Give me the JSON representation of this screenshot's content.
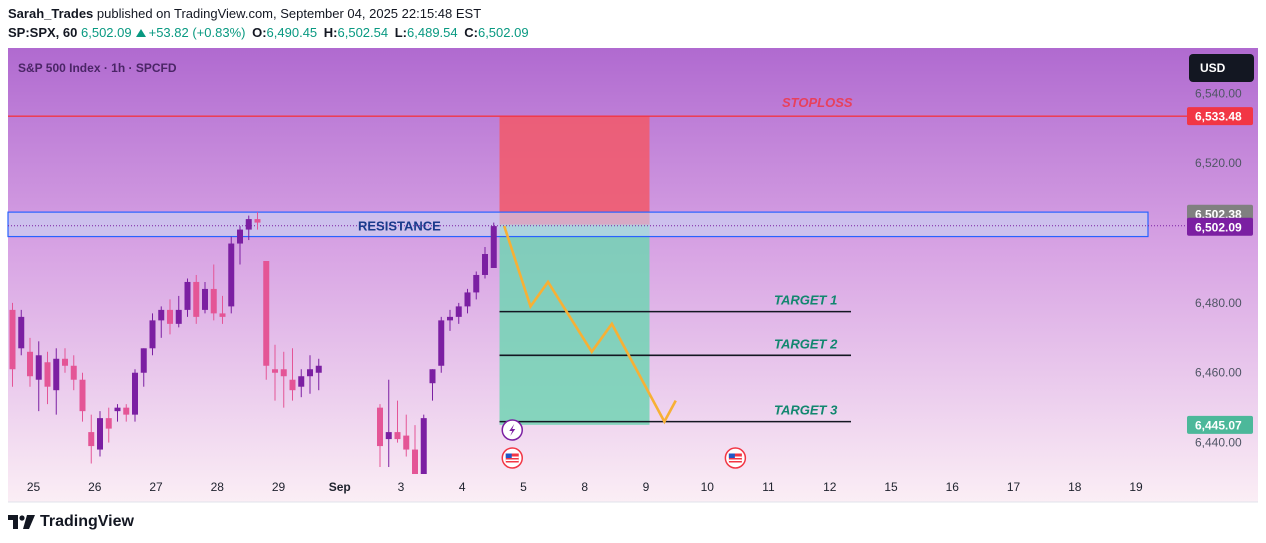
{
  "header": {
    "author": "Sarah_Trades",
    "published_text": "published on TradingView.com, September 04, 2025 22:15:48 EST",
    "symbol_interval": "SP:SPX, 60",
    "last": "6,502.09",
    "change": "+53.82 (+0.83%)",
    "o_label": "O:",
    "o": "6,490.45",
    "h_label": "H:",
    "h": "6,502.54",
    "l_label": "L:",
    "l": "6,489.54",
    "c_label": "C:",
    "c": "6,502.09"
  },
  "currency_button": "USD",
  "footer": {
    "brand": "TradingView"
  },
  "colors": {
    "up": "#7b1fa2",
    "down": "#e45596",
    "stop_fill": "#ef5b6f",
    "target_fill": "#72d4b4",
    "stoploss_line": "#f23645",
    "resistance_fill": "#c9d8f5",
    "resistance_border": "#2962ff",
    "arrow": "#f7b035"
  },
  "chart_data": {
    "type": "candlestick",
    "title": "S&P 500 Index · 1h · SPCFD",
    "y_range": [
      6431,
      6553
    ],
    "y_ticks": [
      6440,
      6460,
      6480,
      6520,
      6540
    ],
    "y_tick_labels": [
      "6,440.00",
      "6,460.00",
      "6,480.00",
      "6,520.00",
      "6,540.00"
    ],
    "x_ticks": [
      {
        "i": 2,
        "label": "25"
      },
      {
        "i": 9,
        "label": "26"
      },
      {
        "i": 16,
        "label": "27"
      },
      {
        "i": 23,
        "label": "28"
      },
      {
        "i": 30,
        "label": "29"
      },
      {
        "i": 37,
        "label": "Sep"
      },
      {
        "i": 44,
        "label": "3"
      },
      {
        "i": 51,
        "label": "4"
      },
      {
        "i": 58,
        "label": "5"
      },
      {
        "i": 65,
        "label": "8"
      },
      {
        "i": 72,
        "label": "9"
      },
      {
        "i": 79,
        "label": "10"
      },
      {
        "i": 86,
        "label": "11"
      },
      {
        "i": 93,
        "label": "12"
      },
      {
        "i": 100,
        "label": "15"
      },
      {
        "i": 107,
        "label": "16"
      },
      {
        "i": 114,
        "label": "17"
      },
      {
        "i": 121,
        "label": "18"
      },
      {
        "i": 128,
        "label": "19"
      }
    ],
    "candles": [
      {
        "i": 0,
        "o": 6478,
        "h": 6480,
        "l": 6456,
        "c": 6461
      },
      {
        "i": 1,
        "o": 6467,
        "h": 6478,
        "l": 6465,
        "c": 6476
      },
      {
        "i": 2,
        "o": 6466,
        "h": 6470,
        "l": 6456,
        "c": 6459
      },
      {
        "i": 3,
        "o": 6458,
        "h": 6469,
        "l": 6449,
        "c": 6465
      },
      {
        "i": 4,
        "o": 6463,
        "h": 6466,
        "l": 6451,
        "c": 6456
      },
      {
        "i": 5,
        "o": 6455,
        "h": 6467,
        "l": 6448,
        "c": 6464
      },
      {
        "i": 6,
        "o": 6464,
        "h": 6467,
        "l": 6460,
        "c": 6462
      },
      {
        "i": 7,
        "o": 6462,
        "h": 6465,
        "l": 6455,
        "c": 6458
      },
      {
        "i": 8,
        "o": 6458,
        "h": 6460,
        "l": 6446,
        "c": 6449
      },
      {
        "i": 9,
        "o": 6443,
        "h": 6448,
        "l": 6434,
        "c": 6439
      },
      {
        "i": 10,
        "o": 6438,
        "h": 6449,
        "l": 6436,
        "c": 6447
      },
      {
        "i": 11,
        "o": 6447,
        "h": 6450,
        "l": 6440,
        "c": 6444
      },
      {
        "i": 12,
        "o": 6449,
        "h": 6451,
        "l": 6446,
        "c": 6450
      },
      {
        "i": 13,
        "o": 6450,
        "h": 6451,
        "l": 6446,
        "c": 6448
      },
      {
        "i": 14,
        "o": 6448,
        "h": 6461,
        "l": 6446,
        "c": 6460
      },
      {
        "i": 15,
        "o": 6460,
        "h": 6467,
        "l": 6456,
        "c": 6467
      },
      {
        "i": 16,
        "o": 6467,
        "h": 6477,
        "l": 6465,
        "c": 6475
      },
      {
        "i": 17,
        "o": 6475,
        "h": 6479,
        "l": 6470,
        "c": 6478
      },
      {
        "i": 18,
        "o": 6478,
        "h": 6481,
        "l": 6471,
        "c": 6474
      },
      {
        "i": 19,
        "o": 6474,
        "h": 6482,
        "l": 6473,
        "c": 6478
      },
      {
        "i": 20,
        "o": 6478,
        "h": 6487,
        "l": 6476,
        "c": 6486
      },
      {
        "i": 21,
        "o": 6486,
        "h": 6488,
        "l": 6474,
        "c": 6476
      },
      {
        "i": 22,
        "o": 6478,
        "h": 6486,
        "l": 6477,
        "c": 6484
      },
      {
        "i": 23,
        "o": 6484,
        "h": 6491,
        "l": 6475,
        "c": 6477
      },
      {
        "i": 24,
        "o": 6477,
        "h": 6482,
        "l": 6474,
        "c": 6476
      },
      {
        "i": 25,
        "o": 6479,
        "h": 6499,
        "l": 6477,
        "c": 6497
      },
      {
        "i": 26,
        "o": 6497,
        "h": 6502,
        "l": 6491,
        "c": 6501
      },
      {
        "i": 27,
        "o": 6501,
        "h": 6505,
        "l": 6498,
        "c": 6504
      },
      {
        "i": 28,
        "o": 6504,
        "h": 6506,
        "l": 6501,
        "c": 6503
      },
      {
        "i": 29,
        "o": 6492,
        "h": 6492,
        "l": 6458,
        "c": 6462
      },
      {
        "i": 30,
        "o": 6461,
        "h": 6468,
        "l": 6452,
        "c": 6460
      },
      {
        "i": 31,
        "o": 6461,
        "h": 6466,
        "l": 6450,
        "c": 6459
      },
      {
        "i": 32,
        "o": 6458,
        "h": 6467,
        "l": 6452,
        "c": 6455
      },
      {
        "i": 33,
        "o": 6456,
        "h": 6461,
        "l": 6453,
        "c": 6459
      },
      {
        "i": 34,
        "o": 6459,
        "h": 6465,
        "l": 6454,
        "c": 6461
      },
      {
        "i": 35,
        "o": 6460,
        "h": 6464,
        "l": 6455,
        "c": 6462
      },
      {
        "i": 42,
        "o": 6450,
        "h": 6451,
        "l": 6433,
        "c": 6439
      },
      {
        "i": 43,
        "o": 6441,
        "h": 6458,
        "l": 6433,
        "c": 6443
      },
      {
        "i": 44,
        "o": 6443,
        "h": 6452,
        "l": 6440,
        "c": 6441
      },
      {
        "i": 45,
        "o": 6442,
        "h": 6448,
        "l": 6436,
        "c": 6438
      },
      {
        "i": 46,
        "o": 6438,
        "h": 6445,
        "l": 6431,
        "c": 6431
      },
      {
        "i": 47,
        "o": 6431,
        "h": 6448,
        "l": 6431,
        "c": 6447
      },
      {
        "i": 48,
        "o": 6457,
        "h": 6461,
        "l": 6452,
        "c": 6461
      },
      {
        "i": 49,
        "o": 6462,
        "h": 6476,
        "l": 6460,
        "c": 6475
      },
      {
        "i": 50,
        "o": 6475,
        "h": 6478,
        "l": 6472,
        "c": 6476
      },
      {
        "i": 51,
        "o": 6476,
        "h": 6480,
        "l": 6474,
        "c": 6479
      },
      {
        "i": 52,
        "o": 6479,
        "h": 6484,
        "l": 6477,
        "c": 6483
      },
      {
        "i": 53,
        "o": 6483,
        "h": 6489,
        "l": 6481,
        "c": 6488
      },
      {
        "i": 54,
        "o": 6488,
        "h": 6496,
        "l": 6487,
        "c": 6494
      },
      {
        "i": 55,
        "o": 6490,
        "h": 6503,
        "l": 6490,
        "c": 6502
      }
    ],
    "price_labels": [
      {
        "value": 6533.48,
        "text": "6,533.48",
        "color": "#f23645"
      },
      {
        "value": 6502.38,
        "text": "6,502.38",
        "color": "#808080"
      },
      {
        "value": 6502.09,
        "text": "6,502.09",
        "color": "#7b1fa2"
      },
      {
        "value": 6445.07,
        "text": "6,445.07",
        "color": "#4cb89a"
      }
    ],
    "position": {
      "stop": 6533.48,
      "entry": 6502.38,
      "target": 6445.07,
      "start_index": 56,
      "end_index": 72
    },
    "annotations": {
      "stoploss": {
        "text": "STOPLOSS",
        "value": 6533.48
      },
      "resistance": {
        "text": "RESISTANCE",
        "top": 6506,
        "bottom": 6499
      },
      "targets": [
        {
          "text": "TARGET 1",
          "value": 6477.5
        },
        {
          "text": "TARGET 2",
          "value": 6465
        },
        {
          "text": "TARGET 3",
          "value": 6446
        }
      ]
    },
    "projection_path": [
      {
        "i": 56.2,
        "v": 6502
      },
      {
        "i": 59.2,
        "v": 6479
      },
      {
        "i": 61.2,
        "v": 6486
      },
      {
        "i": 66.2,
        "v": 6466
      },
      {
        "i": 68.5,
        "v": 6474
      },
      {
        "i": 74.5,
        "v": 6446
      },
      {
        "i": 75.8,
        "v": 6452
      }
    ],
    "events": [
      {
        "i": 57,
        "v_offset": "upper",
        "kind": "split-lightning"
      },
      {
        "i": 57,
        "v_offset": "lower",
        "kind": "us-flag"
      },
      {
        "i": 82.5,
        "v_offset": "lower",
        "kind": "us-flag"
      }
    ]
  }
}
